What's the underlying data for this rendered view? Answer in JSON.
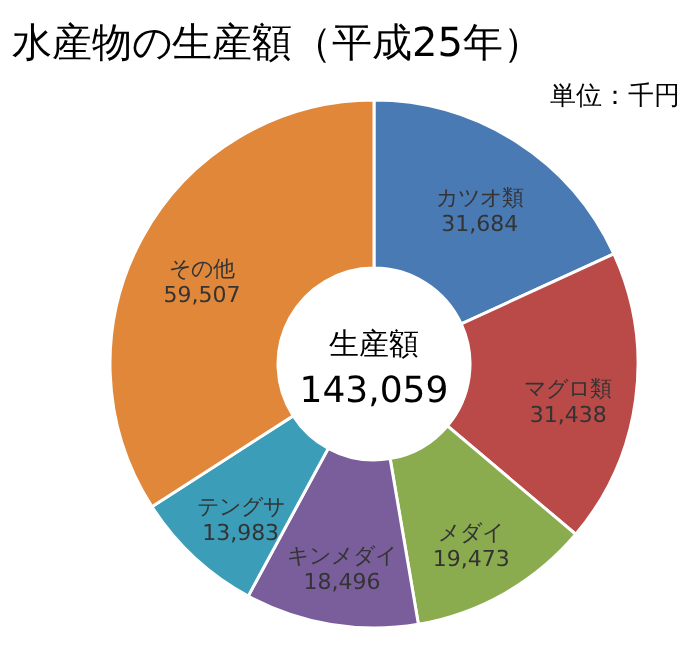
{
  "chart_data": {
    "type": "donut",
    "title": "水産物の生産額（平成25年）",
    "subtitle": "単位：千円",
    "categories": [
      "カツオ類",
      "マグロ類",
      "メダイ",
      "キンメダイ",
      "テングサ",
      "その他"
    ],
    "values": [
      31684,
      31438,
      19473,
      18496,
      13983,
      59507
    ],
    "colors": [
      "#4a7ab4",
      "#b94a48",
      "#8aab4e",
      "#7a5e9c",
      "#3b9db8",
      "#e0873a"
    ],
    "value_labels": [
      "31,684",
      "31,438",
      "19,473",
      "18,496",
      "13,983",
      "59,507"
    ],
    "annotations": [
      "生産額",
      "143,059"
    ]
  }
}
